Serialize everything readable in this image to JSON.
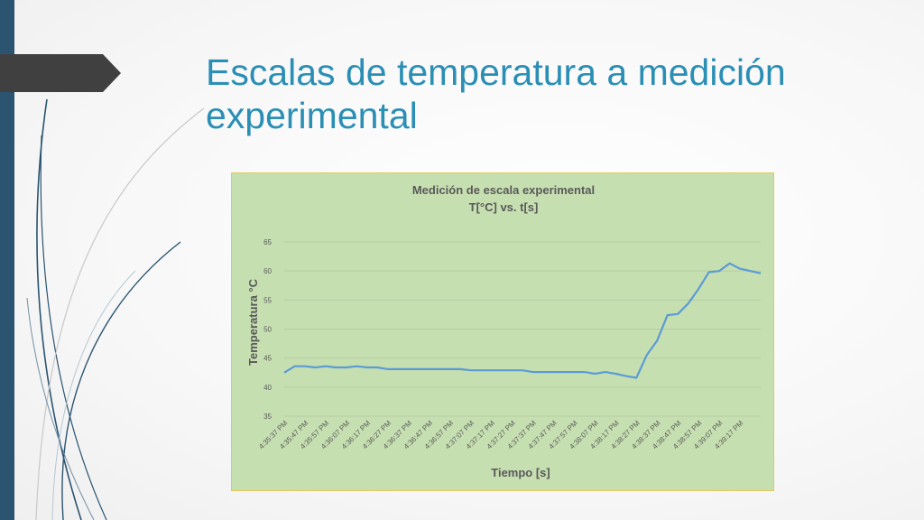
{
  "slide": {
    "title_line1": "Escalas de temperatura a medición",
    "title_line2": "experimental"
  },
  "colors": {
    "accent_title": "#2b8fb5",
    "left_bar": "#2a5470",
    "chart_bg": "#c6dfb1",
    "series_line": "#5b9bd5"
  },
  "chart_data": {
    "type": "line",
    "title": "Medición de escala experimental",
    "subtitle": "T[°C] vs. t[s]",
    "xlabel": "Tiempo [s]",
    "ylabel": "Temperatura °C",
    "ylim": [
      35,
      65
    ],
    "yticks": [
      35,
      40,
      45,
      50,
      55,
      60,
      65
    ],
    "grid": true,
    "legend": "none",
    "x_tick_labels": [
      "4:35:37 PM",
      "4:35:47 PM",
      "4:35:57 PM",
      "4:36:07 PM",
      "4:36:17 PM",
      "4:36:27 PM",
      "4:36:37 PM",
      "4:36:47 PM",
      "4:36:57 PM",
      "4:37:07 PM",
      "4:37:17 PM",
      "4:37:27 PM",
      "4:37:37 PM",
      "4:37:47 PM",
      "4:37:57 PM",
      "4:38:07 PM",
      "4:38:17 PM",
      "4:38:27 PM",
      "4:38:37 PM",
      "4:38:47 PM",
      "4:38:57 PM",
      "4:39:07 PM",
      "4:39:17 PM"
    ],
    "series": [
      {
        "values": [
          42.5,
          43.6,
          43.6,
          43.4,
          43.6,
          43.4,
          43.4,
          43.6,
          43.4,
          43.4,
          43.1,
          43.1,
          43.1,
          43.1,
          43.1,
          43.1,
          43.1,
          43.1,
          42.9,
          42.9,
          42.9,
          42.9,
          42.9,
          42.9,
          42.6,
          42.6,
          42.6,
          42.6,
          42.6,
          42.6,
          42.3,
          42.6,
          42.3,
          41.9,
          41.6,
          45.5,
          48.0,
          52.4,
          52.6,
          54.4,
          56.9,
          59.8,
          60.0,
          61.3,
          60.4,
          60.0,
          59.6
        ]
      }
    ]
  }
}
